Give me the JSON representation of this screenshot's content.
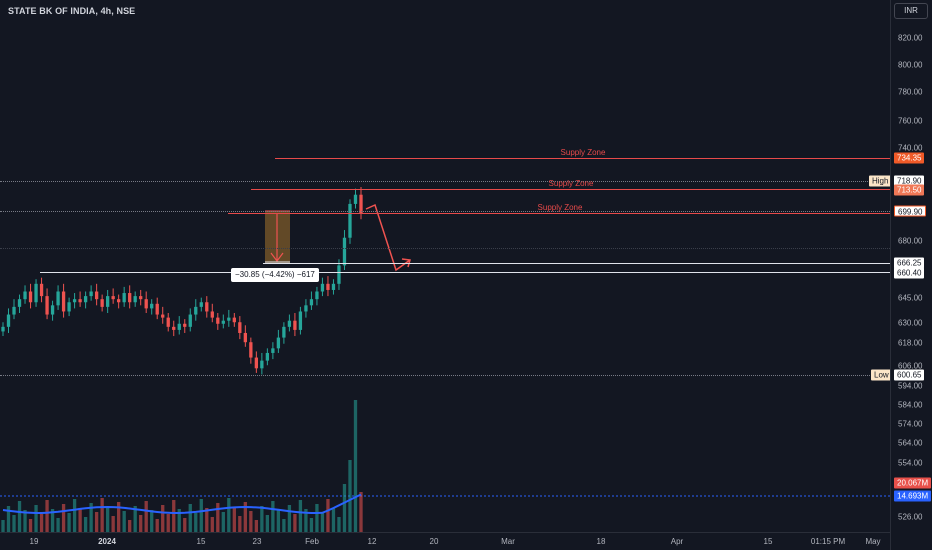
{
  "header": {
    "title": "STATE BK OF INDIA, 4h, NSE"
  },
  "currency": "INR",
  "price_axis": {
    "ticks": [
      "820.00",
      "800.00",
      "780.00",
      "760.00",
      "740.00",
      "680.00",
      "645.00",
      "630.00",
      "618.00",
      "606.00",
      "594.00",
      "584.00",
      "574.00",
      "564.00",
      "554.00",
      "526.00"
    ]
  },
  "price_tags": {
    "zone_top": "734.35",
    "high": "718.90",
    "zone_mid": "713.50",
    "zone_low": "699.90",
    "line_a": "666.25",
    "line_b": "660.40",
    "low": "600.65",
    "volume_last": "20.067M",
    "volume_ma": "14.693M"
  },
  "labels": {
    "high": "High",
    "low": "Low"
  },
  "zones": {
    "label": "Supply Zone"
  },
  "measure": {
    "text": "−30.85 (−4.42%) −617"
  },
  "time_axis": {
    "labels": [
      {
        "text": "19",
        "bold": false
      },
      {
        "text": "2024",
        "bold": true
      },
      {
        "text": "15",
        "bold": false
      },
      {
        "text": "23",
        "bold": false
      },
      {
        "text": "Feb",
        "bold": false
      },
      {
        "text": "12",
        "bold": false
      },
      {
        "text": "20",
        "bold": false
      },
      {
        "text": "Mar",
        "bold": false
      },
      {
        "text": "18",
        "bold": false
      },
      {
        "text": "Apr",
        "bold": false
      },
      {
        "text": "15",
        "bold": false
      },
      {
        "text": "01:15 PM",
        "bold": false
      },
      {
        "text": "May",
        "bold": false
      }
    ]
  },
  "colors": {
    "up": "#26a69a",
    "down": "#ef5350",
    "zone": "#e64a4a",
    "volume_ma": "#2962ff",
    "background": "#131722"
  },
  "chart_data": {
    "type": "candlestick",
    "title": "STATE BK OF INDIA, 4h, NSE",
    "price_range": [
      520,
      830
    ],
    "closes": [
      632,
      640,
      645,
      650,
      655,
      648,
      660,
      652,
      640,
      646,
      655,
      642,
      648,
      650,
      648,
      652,
      655,
      650,
      645,
      652,
      650,
      648,
      654,
      648,
      652,
      650,
      644,
      647,
      640,
      638,
      632,
      630,
      634,
      632,
      640,
      645,
      648,
      642,
      638,
      634,
      636,
      638,
      635,
      628,
      622,
      612,
      605,
      610,
      615,
      618,
      625,
      632,
      636,
      630,
      642,
      646,
      650,
      655,
      660,
      656,
      660,
      672,
      690,
      712,
      718,
      706
    ],
    "volume_ma": 14.693,
    "volume_last": 20.067,
    "supply_zones": [
      734.35,
      713.5,
      699.9
    ],
    "support_lines": [
      666.25,
      660.4
    ],
    "high": 718.9,
    "low": 600.65
  }
}
